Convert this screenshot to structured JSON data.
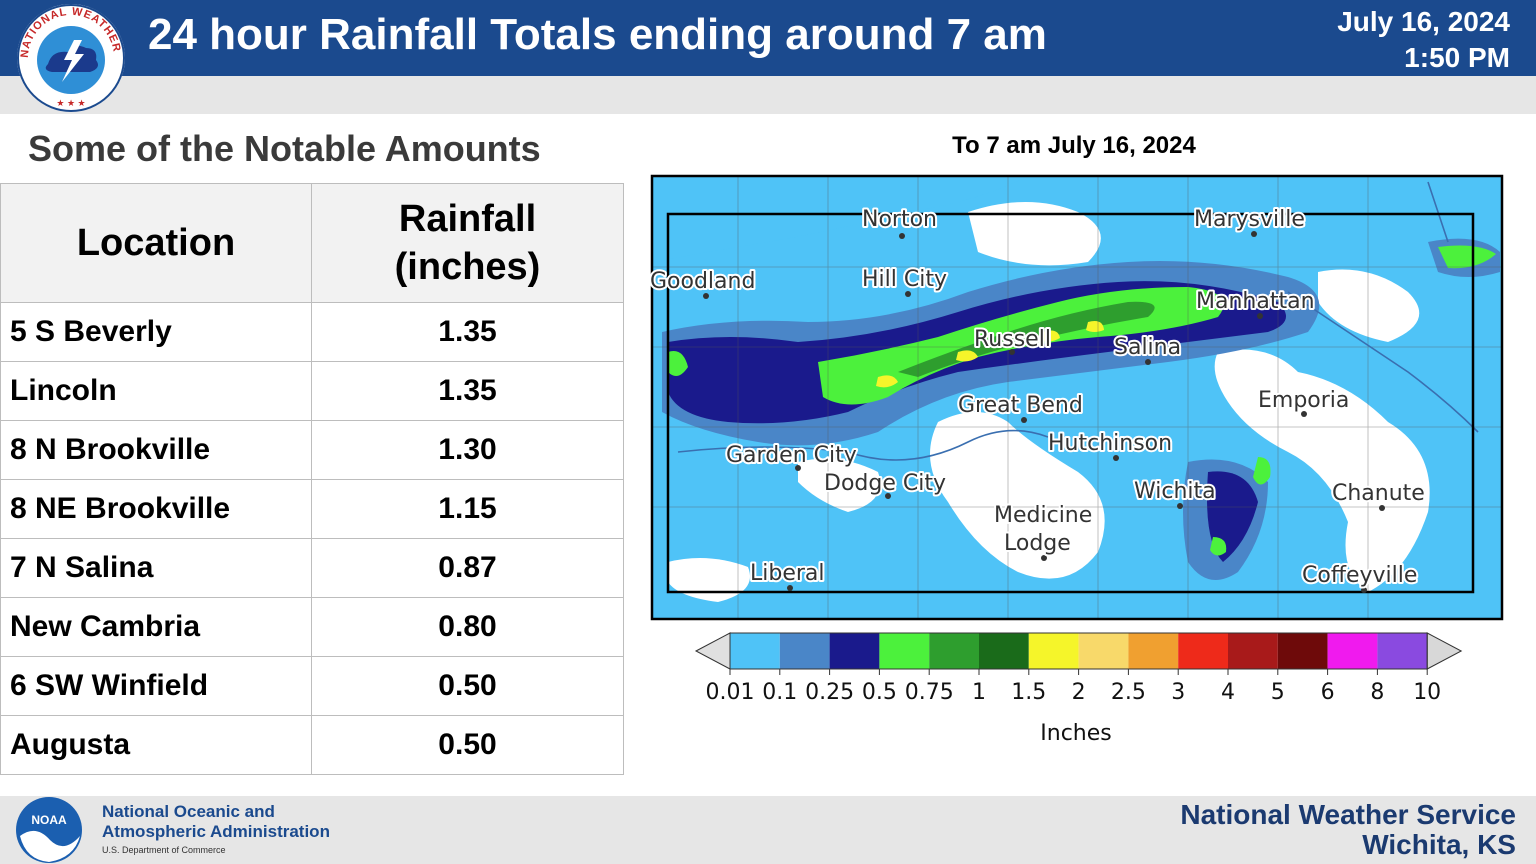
{
  "header": {
    "title": "24 hour Rainfall Totals ending around 7 am",
    "date": "July 16, 2024",
    "time": "1:50 PM",
    "logo_text": "NATIONAL WEATHER SERVICE"
  },
  "table": {
    "title": "Some of the Notable Amounts",
    "col_location": "Location",
    "col_rainfall_line1": "Rainfall",
    "col_rainfall_line2": "(inches)",
    "rows": [
      {
        "location": "5 S Beverly",
        "rainfall": "1.35"
      },
      {
        "location": "Lincoln",
        "rainfall": "1.35"
      },
      {
        "location": "8 N Brookville",
        "rainfall": "1.30"
      },
      {
        "location": "8 NE Brookville",
        "rainfall": "1.15"
      },
      {
        "location": "7 N Salina",
        "rainfall": "0.87"
      },
      {
        "location": "New Cambria",
        "rainfall": "0.80"
      },
      {
        "location": "6 SW Winfield",
        "rainfall": "0.50"
      },
      {
        "location": "Augusta",
        "rainfall": "0.50"
      }
    ]
  },
  "map": {
    "title": "To 7 am July 16, 2024",
    "cities": [
      "Norton",
      "Marysville",
      "Goodland",
      "Hill City",
      "Manhattan",
      "Russell",
      "Salina",
      "Great Bend",
      "Emporia",
      "Hutchinson",
      "Garden City",
      "Dodge City",
      "Wichita",
      "Chanute",
      "Medicine",
      "Lodge",
      "Liberal",
      "Coffeyville"
    ],
    "colorbar": {
      "unit": "Inches",
      "ticks": [
        "0.01",
        "0.1",
        "0.25",
        "0.5",
        "0.75",
        "1",
        "1.5",
        "2",
        "2.5",
        "3",
        "4",
        "5",
        "6",
        "8",
        "10"
      ],
      "colors": [
        "#4fc3f7",
        "#4a86c8",
        "#1a1a8c",
        "#4cf13c",
        "#2e9e2e",
        "#1a6b1a",
        "#f5f52a",
        "#f8d96a",
        "#f0a030",
        "#ee2a1a",
        "#a81a1a",
        "#6e0a0a",
        "#f01aee",
        "#8a4ae0"
      ],
      "under_color": "#e0e0e0",
      "over_color": "#d8d8d8"
    }
  },
  "footer": {
    "org_line1": "National Oceanic and",
    "org_line2": "Atmospheric Administration",
    "org_sub": "U.S. Department of Commerce",
    "logo_text": "NOAA",
    "office_line1": "National Weather Service",
    "office_line2": "Wichita, KS"
  }
}
